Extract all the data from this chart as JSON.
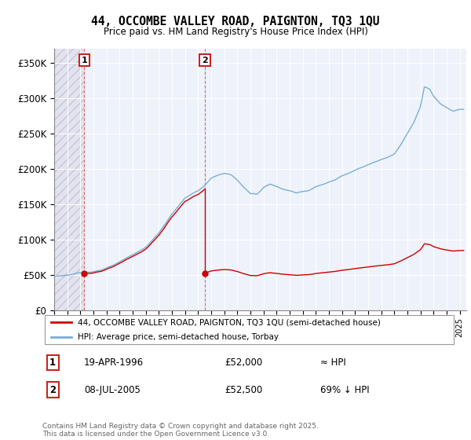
{
  "title": "44, OCCOMBE VALLEY ROAD, PAIGNTON, TQ3 1QU",
  "subtitle": "Price paid vs. HM Land Registry's House Price Index (HPI)",
  "xlim_start": 1994.0,
  "xlim_end": 2025.5,
  "ylim": [
    0,
    370000
  ],
  "yticks": [
    0,
    50000,
    100000,
    150000,
    200000,
    250000,
    300000,
    350000
  ],
  "ytick_labels": [
    "£0",
    "£50K",
    "£100K",
    "£150K",
    "£200K",
    "£250K",
    "£300K",
    "£350K"
  ],
  "transaction1_date": 1996.29,
  "transaction1_price": 52000,
  "transaction2_date": 2005.52,
  "transaction2_price": 52500,
  "hpi_line_color": "#7bafd4",
  "price_line_color": "#cc0000",
  "vline_color": "#cc3333",
  "legend_label_price": "44, OCCOMBE VALLEY ROAD, PAIGNTON, TQ3 1QU (semi-detached house)",
  "legend_label_hpi": "HPI: Average price, semi-detached house, Torbay",
  "footer": "Contains HM Land Registry data © Crown copyright and database right 2025.\nThis data is licensed under the Open Government Licence v3.0.",
  "table_row1": [
    "1",
    "19-APR-1996",
    "£52,000",
    "≈ HPI"
  ],
  "table_row2": [
    "2",
    "08-JUL-2005",
    "£52,500",
    "69% ↓ HPI"
  ]
}
